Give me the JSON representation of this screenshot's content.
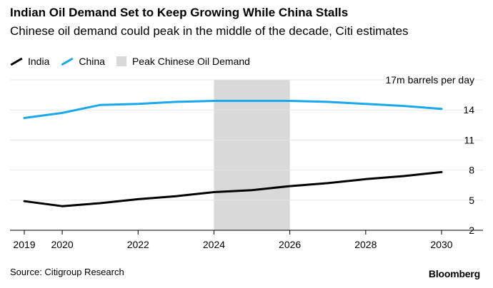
{
  "title": "Indian Oil Demand Set to Keep Growing While China Stalls",
  "subtitle": "Chinese oil demand could peak in the middle of the decade, Citi estimates",
  "legend": {
    "india": "India",
    "china": "China",
    "peak": "Peak Chinese Oil Demand"
  },
  "source": "Source: Citigroup Research",
  "brand": "Bloomberg",
  "colors": {
    "india": "#000000",
    "china": "#1aa8ec",
    "peak": "#d9d9d9",
    "grid": "#e6e6e6",
    "axis": "#000000"
  },
  "chart_data": {
    "type": "line",
    "title": "Indian Oil Demand Set to Keep Growing While China Stalls",
    "subtitle": "Chinese oil demand could peak in the middle of the decade, Citi estimates",
    "unit_label": "17m barrels per day",
    "x": [
      2019,
      2020,
      2021,
      2022,
      2023,
      2024,
      2025,
      2026,
      2027,
      2028,
      2029,
      2030
    ],
    "xticks": [
      "2019",
      "2020",
      "2022",
      "2024",
      "2026",
      "2028",
      "2030"
    ],
    "xlim": [
      2019,
      2030
    ],
    "yticks": [
      "14",
      "11",
      "8",
      "5",
      "2"
    ],
    "ylim": [
      2,
      17
    ],
    "grid": true,
    "series": [
      {
        "name": "India",
        "key": "india",
        "values": [
          4.9,
          4.4,
          4.7,
          5.1,
          5.4,
          5.8,
          6.0,
          6.4,
          6.7,
          7.1,
          7.4,
          7.8
        ]
      },
      {
        "name": "China",
        "key": "china",
        "values": [
          13.2,
          13.7,
          14.5,
          14.6,
          14.8,
          14.9,
          14.9,
          14.9,
          14.8,
          14.6,
          14.4,
          14.1
        ]
      }
    ],
    "shaded_region": {
      "label": "Peak Chinese Oil Demand",
      "x_start": 2024,
      "x_end": 2026
    }
  }
}
